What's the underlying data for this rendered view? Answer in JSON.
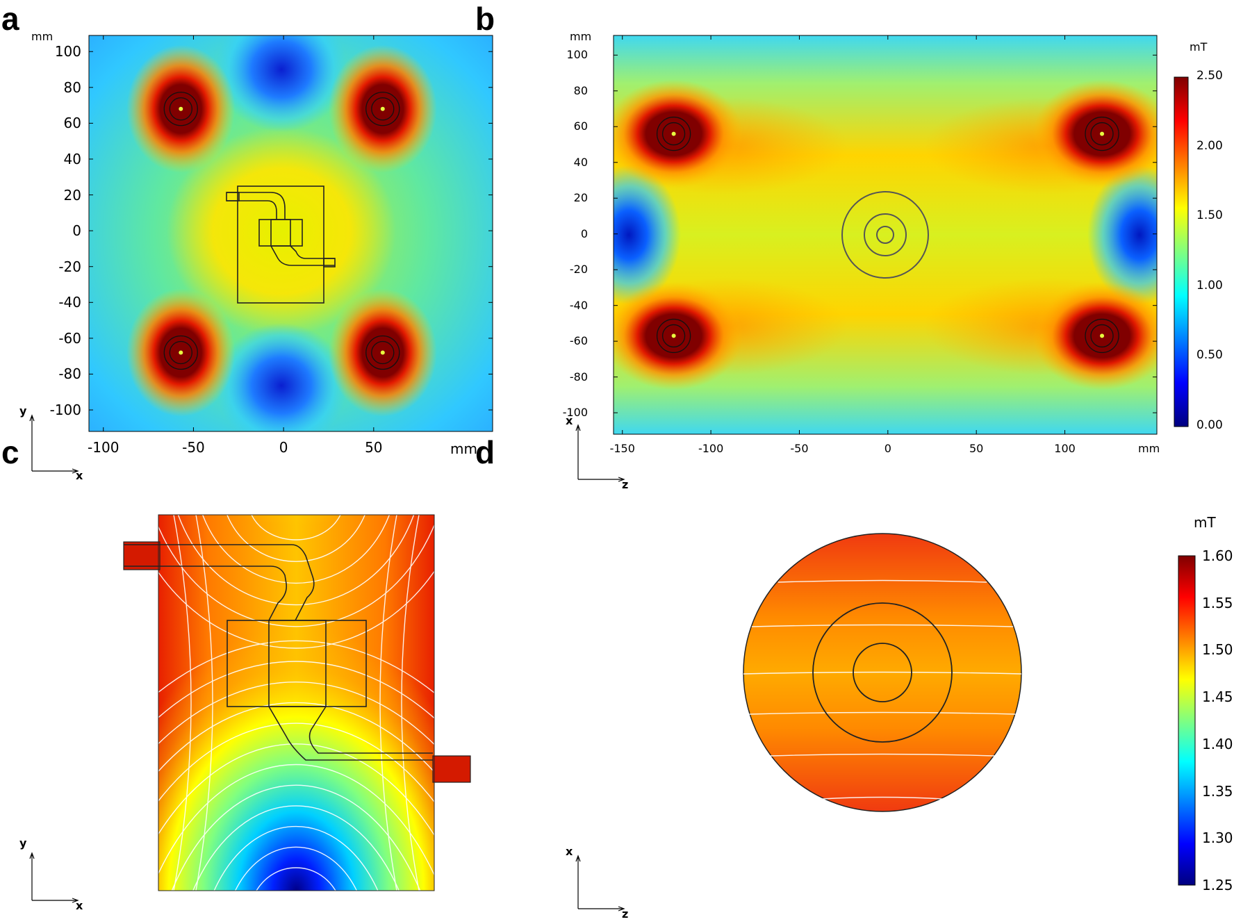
{
  "panels": {
    "a": {
      "letter": "a"
    },
    "b": {
      "letter": "b"
    },
    "c": {
      "letter": "c"
    },
    "d": {
      "letter": "d"
    }
  },
  "chart_data": [
    {
      "type": "heatmap",
      "panel": "a",
      "title": "",
      "xlabel": "x",
      "ylabel": "y",
      "x_unit": "mm",
      "y_unit": "mm",
      "xlim": [
        -108,
        116
      ],
      "ylim": [
        -112,
        109
      ],
      "x_ticks": [
        "-100",
        "-50",
        "0",
        "50"
      ],
      "y_ticks": [
        "100",
        "80",
        "60",
        "40",
        "20",
        "0",
        "-20",
        "-40",
        "-60",
        "-80",
        "-100"
      ],
      "field_maxima": [
        {
          "x": -57,
          "y": 68
        },
        {
          "x": 55,
          "y": 68
        },
        {
          "x": -57,
          "y": -68
        },
        {
          "x": 55,
          "y": -68
        }
      ],
      "field_minima": [
        {
          "x": 0,
          "y": 90
        },
        {
          "x": 0,
          "y": -85
        }
      ],
      "colorscale": "jet"
    },
    {
      "type": "heatmap",
      "panel": "b",
      "title": "",
      "xlabel": "z",
      "ylabel": "x",
      "x_unit": "mm",
      "y_unit": "mm",
      "xlim": [
        -155,
        152
      ],
      "ylim": [
        -112,
        111
      ],
      "x_ticks": [
        "-150",
        "-100",
        "-50",
        "0",
        "50",
        "100"
      ],
      "y_ticks": [
        "100",
        "80",
        "60",
        "40",
        "20",
        "0",
        "-20",
        "-40",
        "-60",
        "-80",
        "-100"
      ],
      "field_maxima": [
        {
          "x": -121,
          "y": 56
        },
        {
          "x": 121,
          "y": 56
        },
        {
          "x": -121,
          "y": -57
        },
        {
          "x": 121,
          "y": -57
        }
      ],
      "field_minima": [
        {
          "x": -140,
          "y": 0
        },
        {
          "x": 140,
          "y": 0
        }
      ],
      "colorbar": {
        "unit": "mT",
        "range": [
          0.0,
          2.5
        ],
        "ticks": [
          "2.50",
          "2.00",
          "1.50",
          "1.00",
          "0.50",
          "0.00"
        ]
      },
      "colorscale": "jet"
    },
    {
      "type": "heatmap",
      "panel": "c",
      "title": "",
      "xlabel": "x",
      "ylabel": "y",
      "note": "close-up of the chip region with white field contour lines",
      "colorbar": {
        "unit": "mT",
        "range": [
          1.25,
          1.6
        ],
        "ticks": [
          "1.60",
          "1.55",
          "1.50",
          "1.45",
          "1.40",
          "1.35",
          "1.30",
          "1.25"
        ]
      },
      "colorscale": "jet"
    },
    {
      "type": "heatmap",
      "panel": "d",
      "title": "",
      "xlabel": "z",
      "ylabel": "x",
      "note": "circular cross-section with white field contour lines",
      "colorbar": {
        "unit": "mT",
        "range": [
          1.25,
          1.6
        ],
        "ticks": [
          "1.60",
          "1.55",
          "1.50",
          "1.45",
          "1.40",
          "1.35",
          "1.30",
          "1.25"
        ]
      },
      "colorscale": "jet"
    }
  ]
}
